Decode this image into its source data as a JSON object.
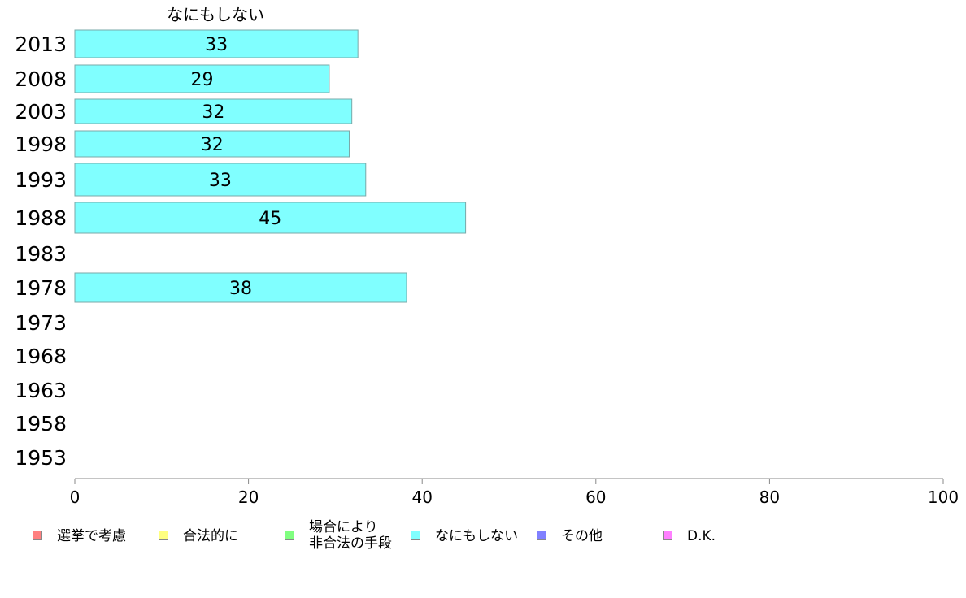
{
  "chart_data": {
    "type": "bar",
    "orientation": "horizontal",
    "title": "なにもしない",
    "categories": [
      "2013",
      "2008",
      "2003",
      "1998",
      "1993",
      "1988",
      "1983",
      "1978",
      "1973",
      "1968",
      "1963",
      "1958",
      "1953"
    ],
    "series": [
      {
        "name": "なにもしない",
        "color": "#80ffff",
        "values": [
          33,
          29,
          32,
          32,
          33,
          45,
          null,
          38,
          null,
          null,
          null,
          null,
          null
        ],
        "exact_values": [
          32.6,
          29.3,
          31.9,
          31.6,
          33.5,
          45.0,
          null,
          38.2,
          null,
          null,
          null,
          null,
          null
        ]
      }
    ],
    "xlim": [
      0,
      100
    ],
    "xticks": [
      0,
      20,
      40,
      60,
      80,
      100
    ],
    "legend": [
      {
        "label": "選挙で考慮",
        "color": "#ff8080"
      },
      {
        "label": "合法的に",
        "color": "#ffff80"
      },
      {
        "label": "場合により\n非合法の手段",
        "color": "#80ff80"
      },
      {
        "label": "なにもしない",
        "color": "#80ffff"
      },
      {
        "label": "その他",
        "color": "#8080ff"
      },
      {
        "label": "D.K.",
        "color": "#ff80ff"
      }
    ]
  }
}
